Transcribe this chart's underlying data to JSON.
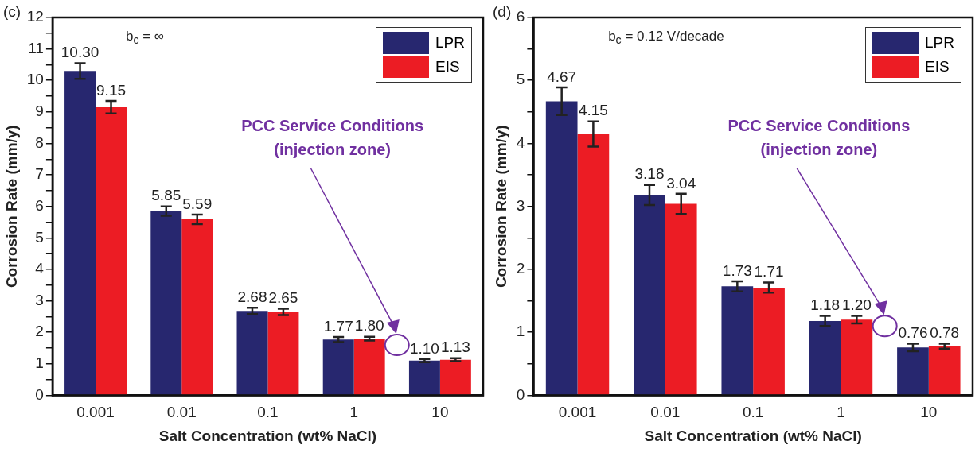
{
  "chart_data": [
    {
      "type": "bar",
      "xlabel": "Salt Concentration (wt% NaCl)",
      "ylabel": "Corrosion Rate (mm/y)",
      "categories": [
        "0.001",
        "0.01",
        "0.1",
        "1",
        "10"
      ],
      "series": [
        {
          "name": "LPR",
          "color": "#27276f",
          "values": [
            10.3,
            5.85,
            2.68,
            1.77,
            1.1
          ],
          "value_labels": [
            "10.30",
            "5.85",
            "2.68",
            "1.77",
            "1.10"
          ],
          "errors": [
            0.25,
            0.15,
            0.1,
            0.08,
            0.05
          ]
        },
        {
          "name": "EIS",
          "color": "#ec1c24",
          "values": [
            9.15,
            5.59,
            2.65,
            1.8,
            1.13
          ],
          "value_labels": [
            "9.15",
            "5.59",
            "2.65",
            "1.80",
            "1.13"
          ],
          "errors": [
            0.2,
            0.15,
            0.1,
            0.06,
            0.05
          ]
        }
      ],
      "ylim": [
        0,
        12
      ],
      "yticks": [
        0,
        {
          "value": 0.5,
          "label": null
        },
        1,
        {
          "value": 1.5,
          "label": null
        },
        2,
        {
          "value": 2.5,
          "label": null
        },
        3,
        {
          "value": 3.5,
          "label": null
        },
        4,
        {
          "value": 4.5,
          "label": null
        },
        5,
        {
          "value": 5.5,
          "label": null
        },
        6,
        {
          "value": 6.5,
          "label": null
        },
        7,
        {
          "value": 7.5,
          "label": null
        },
        8,
        {
          "value": 8.5,
          "label": null
        },
        9,
        {
          "value": 9.5,
          "label": null
        },
        10,
        {
          "value": 10.5,
          "label": null
        },
        11,
        {
          "value": 11.5,
          "label": null
        },
        12
      ],
      "legend": "top right",
      "grid": false,
      "annotations": [
        "(c)",
        "b$_{c}$ = ∞",
        "PCC Service Conditions",
        "(injection zone)"
      ]
    },
    {
      "type": "bar",
      "xlabel": "Salt Concentration (wt% NaCl)",
      "ylabel": "Corrosion Rate (mm/y)",
      "categories": [
        "0.001",
        "0.01",
        "0.1",
        "1",
        "10"
      ],
      "series": [
        {
          "name": "LPR",
          "color": "#27276f",
          "values": [
            4.67,
            3.18,
            1.73,
            1.18,
            0.76
          ],
          "value_labels": [
            "4.67",
            "3.18",
            "1.73",
            "1.18",
            "0.76"
          ],
          "errors": [
            0.22,
            0.16,
            0.08,
            0.08,
            0.06
          ]
        },
        {
          "name": "EIS",
          "color": "#ec1c24",
          "values": [
            4.15,
            3.04,
            1.71,
            1.2,
            0.78
          ],
          "value_labels": [
            "4.15",
            "3.04",
            "1.71",
            "1.20",
            "0.78"
          ],
          "errors": [
            0.2,
            0.16,
            0.08,
            0.06,
            0.04
          ]
        }
      ],
      "ylim": [
        0,
        6
      ],
      "yticks": [
        0,
        {
          "value": 0.5,
          "label": null
        },
        1,
        {
          "value": 1.5,
          "label": null
        },
        2,
        {
          "value": 2.5,
          "label": null
        },
        3,
        {
          "value": 3.5,
          "label": null
        },
        4,
        {
          "value": 4.5,
          "label": null
        },
        5,
        {
          "value": 5.5,
          "label": null
        },
        6
      ],
      "legend": "top right",
      "grid": false,
      "annotations": [
        "(d)",
        "b$_{c}$ = 0.12 V/decade",
        "PCC Service Conditions",
        "(injection zone)"
      ]
    }
  ]
}
